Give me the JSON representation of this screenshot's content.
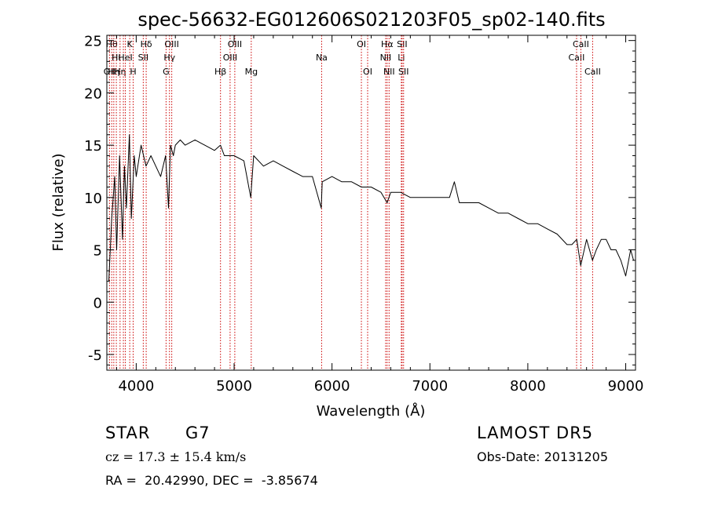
{
  "chart_data": {
    "type": "line",
    "title": "spec-56632-EG012606S021203F05_sp02-140.fits",
    "xlabel": "Wavelength (Å)",
    "ylabel": "Flux (relative)",
    "xlim": [
      3700,
      9100
    ],
    "ylim": [
      -6.5,
      25.5
    ],
    "x_ticks": [
      4000,
      5000,
      6000,
      7000,
      8000,
      9000
    ],
    "y_ticks": [
      -5,
      0,
      5,
      10,
      15,
      20,
      25
    ],
    "grid": false,
    "series": [
      {
        "x": [
          3720,
          3750,
          3780,
          3800,
          3830,
          3860,
          3880,
          3900,
          3930,
          3950,
          3980,
          4000,
          4050,
          4100,
          4150,
          4200,
          4250,
          4300,
          4330,
          4350,
          4380,
          4400,
          4450,
          4500,
          4600,
          4700,
          4800,
          4860,
          4900,
          5000,
          5100,
          5170,
          5200,
          5300,
          5400,
          5500,
          5600,
          5700,
          5800,
          5890,
          5900,
          6000,
          6100,
          6200,
          6300,
          6400,
          6500,
          6563,
          6600,
          6700,
          6800,
          6900,
          7000,
          7100,
          7200,
          7250,
          7300,
          7400,
          7500,
          7600,
          7700,
          7800,
          7900,
          8000,
          8100,
          8200,
          8300,
          8400,
          8450,
          8500,
          8540,
          8600,
          8660,
          8700,
          8750,
          8800,
          8850,
          8900,
          8950,
          9000,
          9050,
          9080
        ],
        "y": [
          2,
          8,
          12,
          5,
          14,
          6,
          13,
          9,
          16,
          8,
          14,
          12,
          15,
          13,
          14,
          13,
          12,
          14,
          9,
          15,
          14,
          15,
          15.5,
          15,
          15.5,
          15,
          14.5,
          15,
          14,
          14,
          13.5,
          10,
          14,
          13,
          13.5,
          13,
          12.5,
          12,
          12,
          9,
          11.5,
          12,
          11.5,
          11.5,
          11,
          11,
          10.5,
          9.5,
          10.5,
          10.5,
          10,
          10,
          10,
          10,
          10,
          11.5,
          9.5,
          9.5,
          9.5,
          9,
          8.5,
          8.5,
          8,
          7.5,
          7.5,
          7,
          6.5,
          5.5,
          5.5,
          6,
          3.5,
          6,
          4,
          5,
          6,
          6,
          5,
          5,
          4,
          2.5,
          5,
          4
        ]
      }
    ],
    "lines": [
      {
        "x": 3727,
        "label": "OII",
        "row": 2
      },
      {
        "x": 3750,
        "label": "Hθ",
        "row": 0
      },
      {
        "x": 3771,
        "label": "Hη",
        "row": 2
      },
      {
        "x": 3797,
        "label": "Hι",
        "row": 1
      },
      {
        "x": 3835,
        "label": "Hη",
        "row": 2
      },
      {
        "x": 3869,
        "label": "",
        "row": 0
      },
      {
        "x": 3889,
        "label": "HeI",
        "row": 1
      },
      {
        "x": 3934,
        "label": "K",
        "row": 0
      },
      {
        "x": 3969,
        "label": "H",
        "row": 2
      },
      {
        "x": 4072,
        "label": "SII",
        "row": 1
      },
      {
        "x": 4102,
        "label": "Hδ",
        "row": 0
      },
      {
        "x": 4305,
        "label": "G",
        "row": 2
      },
      {
        "x": 4340,
        "label": "Hγ",
        "row": 1
      },
      {
        "x": 4363,
        "label": "OIII",
        "row": 0
      },
      {
        "x": 4861,
        "label": "Hβ",
        "row": 2
      },
      {
        "x": 4959,
        "label": "OIII",
        "row": 1
      },
      {
        "x": 5007,
        "label": "OIII",
        "row": 0
      },
      {
        "x": 5175,
        "label": "Mg",
        "row": 2
      },
      {
        "x": 5894,
        "label": "Na",
        "row": 1
      },
      {
        "x": 6300,
        "label": "OI",
        "row": 0
      },
      {
        "x": 6364,
        "label": "OI",
        "row": 2
      },
      {
        "x": 6548,
        "label": "NII",
        "row": 1
      },
      {
        "x": 6563,
        "label": "Hα",
        "row": 0
      },
      {
        "x": 6583,
        "label": "NII",
        "row": 2
      },
      {
        "x": 6708,
        "label": "Li",
        "row": 1
      },
      {
        "x": 6716,
        "label": "SII",
        "row": 0
      },
      {
        "x": 6731,
        "label": "SII",
        "row": 2
      },
      {
        "x": 8498,
        "label": "CaII",
        "row": 1
      },
      {
        "x": 8542,
        "label": "CaII",
        "row": 0
      },
      {
        "x": 8662,
        "label": "CaII",
        "row": 2
      }
    ]
  },
  "info": {
    "object_class": "STAR",
    "subclass": "G7",
    "survey": "LAMOST DR5",
    "cz": "cz = 17.3 ± 15.4 km/s",
    "obs_date": "Obs-Date: 20131205",
    "coords": "RA =  20.42990, DEC =  -3.85674"
  },
  "colors": {
    "line_marker": "#cc0000",
    "spectrum": "#000000"
  }
}
